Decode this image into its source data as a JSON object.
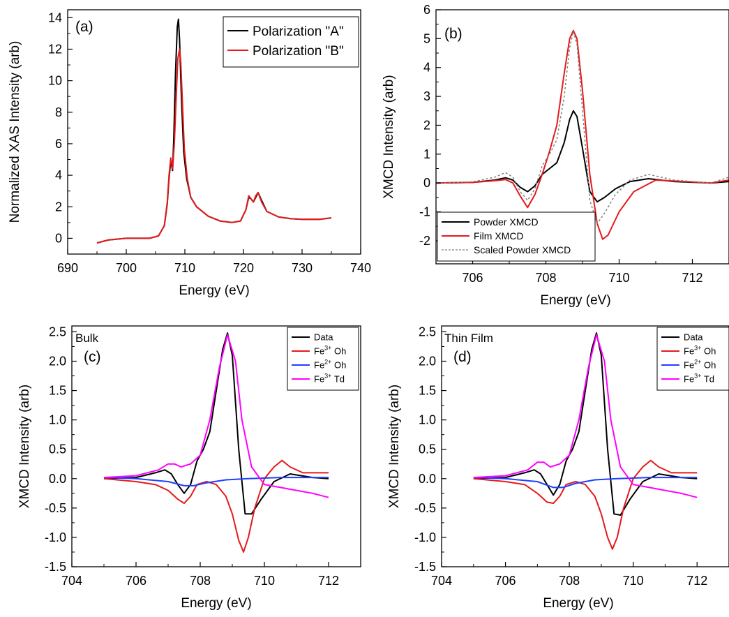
{
  "chart_data": [
    {
      "id": "a",
      "type": "line",
      "panel_label": "(a)",
      "xlabel": "Energy (eV)",
      "ylabel": "Normalized XAS Intensity (arb)",
      "xlim": [
        690,
        740
      ],
      "ylim": [
        -1,
        14.5
      ],
      "xticks": [
        690,
        700,
        710,
        720,
        730,
        740
      ],
      "yticks": [
        0,
        2,
        4,
        6,
        8,
        10,
        12,
        14
      ],
      "legend_position": "top-right",
      "series": [
        {
          "name": "Polarization \"A\"",
          "color": "#000000",
          "x": [
            695,
            696,
            697,
            700,
            704,
            705.5,
            706.5,
            707,
            707.3,
            707.6,
            707.9,
            708.1,
            708.4,
            708.7,
            708.9,
            709.1,
            709.4,
            709.8,
            710.3,
            711,
            712,
            714,
            716,
            718,
            719.5,
            720.4,
            720.9,
            721.3,
            721.7,
            722.1,
            722.5,
            723.1,
            724,
            726,
            728,
            730,
            733,
            735
          ],
          "y": [
            -0.3,
            -0.2,
            -0.1,
            0.0,
            0.0,
            0.15,
            0.8,
            2.2,
            3.8,
            4.9,
            4.3,
            6.2,
            10.5,
            13.4,
            13.9,
            12.6,
            9.0,
            5.5,
            3.8,
            2.6,
            2.0,
            1.4,
            1.1,
            1.0,
            1.1,
            1.8,
            2.6,
            2.5,
            2.3,
            2.6,
            2.9,
            2.4,
            1.7,
            1.35,
            1.25,
            1.2,
            1.2,
            1.3
          ]
        },
        {
          "name": "Polarization \"B\"",
          "color": "#e41a1c",
          "x": [
            695,
            696,
            697,
            700,
            704,
            705.5,
            706.5,
            707,
            707.3,
            707.6,
            707.9,
            708.2,
            708.5,
            708.8,
            709.1,
            709.3,
            709.6,
            709.9,
            710.4,
            711,
            712,
            714,
            716,
            718,
            719.5,
            720.4,
            720.9,
            721.3,
            721.7,
            722.1,
            722.5,
            723.1,
            724,
            726,
            728,
            730,
            733,
            735
          ],
          "y": [
            -0.3,
            -0.2,
            -0.1,
            0.0,
            0.0,
            0.15,
            0.8,
            2.3,
            4.0,
            5.1,
            4.4,
            6.0,
            8.8,
            11.4,
            12.0,
            11.2,
            8.5,
            5.7,
            3.8,
            2.6,
            2.0,
            1.4,
            1.1,
            1.0,
            1.1,
            1.8,
            2.7,
            2.5,
            2.3,
            2.7,
            2.9,
            2.3,
            1.7,
            1.35,
            1.25,
            1.2,
            1.2,
            1.3
          ]
        }
      ]
    },
    {
      "id": "b",
      "type": "line",
      "panel_label": "(b)",
      "xlabel": "Energy (eV)",
      "ylabel": "XMCD Intensity (arb)",
      "xlim": [
        705,
        713
      ],
      "ylim": [
        -2.8,
        6
      ],
      "xticks": [
        706,
        708,
        710,
        712
      ],
      "yticks": [
        -2,
        -1,
        0,
        1,
        2,
        3,
        4,
        5,
        6
      ],
      "legend_position": "bottom-left",
      "series": [
        {
          "name": "Powder XMCD",
          "color": "#000000",
          "dash": "solid",
          "x": [
            705,
            706,
            706.6,
            706.9,
            707.1,
            707.3,
            707.5,
            707.7,
            707.9,
            708.1,
            708.3,
            708.5,
            708.65,
            708.75,
            708.85,
            709.0,
            709.2,
            709.4,
            709.6,
            709.9,
            710.3,
            710.8,
            711.5,
            712.5,
            713
          ],
          "y": [
            0,
            0.02,
            0.1,
            0.18,
            0.1,
            -0.15,
            -0.3,
            -0.1,
            0.3,
            0.5,
            0.7,
            1.4,
            2.2,
            2.5,
            2.3,
            1.2,
            -0.3,
            -0.65,
            -0.5,
            -0.2,
            0.05,
            0.15,
            0.05,
            0.0,
            0.05
          ]
        },
        {
          "name": "Film XMCD",
          "color": "#e41a1c",
          "dash": "solid",
          "x": [
            705,
            706,
            706.6,
            706.9,
            707.1,
            707.3,
            707.5,
            707.7,
            707.9,
            708.1,
            708.3,
            708.5,
            708.65,
            708.75,
            708.85,
            709.0,
            709.2,
            709.4,
            709.55,
            709.7,
            710.0,
            710.4,
            711,
            711.8,
            712.5,
            713
          ],
          "y": [
            0,
            0.02,
            0.08,
            0.12,
            0.0,
            -0.45,
            -0.85,
            -0.4,
            0.3,
            1.1,
            2.0,
            3.8,
            5.0,
            5.28,
            5.0,
            3.2,
            0.3,
            -1.4,
            -1.95,
            -1.8,
            -1.0,
            -0.3,
            0.1,
            0.05,
            0.0,
            0.1
          ]
        },
        {
          "name": "Scaled Powder XMCD",
          "color": "#808080",
          "dash": "dotted",
          "x": [
            705,
            706,
            706.6,
            706.9,
            707.1,
            707.3,
            707.5,
            707.7,
            707.9,
            708.1,
            708.3,
            708.5,
            708.65,
            708.75,
            708.85,
            709.0,
            709.2,
            709.4,
            709.6,
            709.9,
            710.3,
            710.8,
            711.5,
            712.5,
            713
          ],
          "y": [
            0,
            0.04,
            0.2,
            0.36,
            0.2,
            -0.3,
            -0.6,
            -0.2,
            0.6,
            1.0,
            1.5,
            3.0,
            4.7,
            5.25,
            4.8,
            2.5,
            -0.6,
            -1.4,
            -1.05,
            -0.4,
            0.1,
            0.3,
            0.1,
            0.0,
            0.2
          ]
        }
      ]
    },
    {
      "id": "c",
      "type": "line",
      "panel_label": "(c)",
      "corner_text": "Bulk",
      "xlabel": "Energy (eV)",
      "ylabel": "XMCD Intensity (arb)",
      "xlim": [
        704,
        713
      ],
      "ylim": [
        -1.5,
        2.6
      ],
      "xticks": [
        704,
        706,
        708,
        710,
        712
      ],
      "yticks": [
        -1.5,
        -1.0,
        -0.5,
        0.0,
        0.5,
        1.0,
        1.5,
        2.0,
        2.5
      ],
      "legend_position": "top-right",
      "series": [
        {
          "name": "Data",
          "color": "#000000",
          "x": [
            705,
            706,
            706.6,
            706.9,
            707.1,
            707.3,
            707.5,
            707.7,
            707.9,
            708.1,
            708.3,
            708.5,
            708.7,
            708.85,
            709.0,
            709.2,
            709.4,
            709.6,
            709.9,
            710.3,
            710.8,
            711.5,
            712
          ],
          "y": [
            0,
            0.02,
            0.1,
            0.15,
            0.08,
            -0.1,
            -0.25,
            -0.1,
            0.3,
            0.5,
            0.8,
            1.5,
            2.2,
            2.48,
            2.1,
            0.5,
            -0.6,
            -0.6,
            -0.35,
            -0.05,
            0.08,
            0.02,
            0.0
          ]
        },
        {
          "name": "Fe3+ Oh",
          "color": "#e41a1c",
          "sup": "3+",
          "base": "Fe",
          "tail": " Oh",
          "x": [
            705,
            706,
            706.6,
            707.0,
            707.3,
            707.5,
            707.7,
            707.9,
            708.2,
            708.5,
            708.8,
            709.0,
            709.2,
            709.35,
            709.5,
            709.7,
            710.0,
            710.3,
            710.55,
            710.8,
            711.2,
            712
          ],
          "y": [
            0,
            -0.05,
            -0.1,
            -0.2,
            -0.35,
            -0.42,
            -0.3,
            -0.1,
            -0.05,
            -0.1,
            -0.3,
            -0.6,
            -1.05,
            -1.25,
            -1.0,
            -0.5,
            0.0,
            0.2,
            0.31,
            0.2,
            0.1,
            0.1
          ]
        },
        {
          "name": "Fe2+ Oh",
          "color": "#1f3fff",
          "sup": "2+",
          "base": "Fe",
          "tail": " Oh",
          "x": [
            705,
            706,
            707,
            707.5,
            707.8,
            708.2,
            708.8,
            709.5,
            710.5,
            711.5,
            712
          ],
          "y": [
            0.02,
            0.0,
            -0.05,
            -0.12,
            -0.12,
            -0.07,
            -0.02,
            0.0,
            0.02,
            0.02,
            0.02
          ]
        },
        {
          "name": "Fe3+ Td",
          "color": "#ff00ff",
          "sup": "3+",
          "base": "Fe",
          "tail": " Td",
          "x": [
            705,
            706,
            706.7,
            707.0,
            707.2,
            707.4,
            707.7,
            708.0,
            708.3,
            708.6,
            708.85,
            709.1,
            709.3,
            709.6,
            710.0,
            710.5,
            711,
            711.5,
            712
          ],
          "y": [
            0.02,
            0.05,
            0.15,
            0.25,
            0.25,
            0.2,
            0.25,
            0.4,
            1.0,
            1.9,
            2.45,
            2.0,
            1.0,
            0.2,
            -0.1,
            -0.15,
            -0.2,
            -0.25,
            -0.32
          ]
        }
      ]
    },
    {
      "id": "d",
      "type": "line",
      "panel_label": "(d)",
      "corner_text": "Thin Film",
      "xlabel": "Energy (eV)",
      "ylabel": "XMCD Intensity (arb)",
      "xlim": [
        704,
        713
      ],
      "ylim": [
        -1.5,
        2.6
      ],
      "xticks": [
        704,
        706,
        708,
        710,
        712
      ],
      "yticks": [
        -1.5,
        -1.0,
        -0.5,
        0.0,
        0.5,
        1.0,
        1.5,
        2.0,
        2.5
      ],
      "legend_position": "top-right",
      "series": [
        {
          "name": "Data",
          "color": "#000000",
          "x": [
            705,
            706,
            706.6,
            706.9,
            707.1,
            707.3,
            707.5,
            707.7,
            707.9,
            708.1,
            708.3,
            708.5,
            708.7,
            708.85,
            709.0,
            709.2,
            709.4,
            709.6,
            709.9,
            710.3,
            710.8,
            711.5,
            712
          ],
          "y": [
            0,
            0.02,
            0.1,
            0.15,
            0.08,
            -0.1,
            -0.28,
            -0.1,
            0.3,
            0.5,
            0.8,
            1.5,
            2.2,
            2.48,
            2.1,
            0.5,
            -0.6,
            -0.62,
            -0.35,
            -0.05,
            0.08,
            0.02,
            0.0
          ]
        },
        {
          "name": "Fe3+ Oh",
          "color": "#e41a1c",
          "sup": "3+",
          "base": "Fe",
          "tail": " Oh",
          "x": [
            705,
            706,
            706.6,
            707.0,
            707.3,
            707.5,
            707.7,
            707.9,
            708.2,
            708.5,
            708.8,
            709.0,
            709.2,
            709.35,
            709.5,
            709.7,
            710.0,
            710.3,
            710.55,
            710.8,
            711.2,
            712
          ],
          "y": [
            0,
            -0.05,
            -0.1,
            -0.25,
            -0.4,
            -0.42,
            -0.3,
            -0.1,
            -0.05,
            -0.1,
            -0.3,
            -0.6,
            -1.0,
            -1.2,
            -1.0,
            -0.5,
            0.0,
            0.2,
            0.31,
            0.2,
            0.1,
            0.1
          ]
        },
        {
          "name": "Fe2+ Oh",
          "color": "#1f3fff",
          "sup": "2+",
          "base": "Fe",
          "tail": " Oh",
          "x": [
            705,
            706,
            707,
            707.5,
            707.8,
            708.2,
            708.8,
            709.5,
            710.5,
            711.5,
            712
          ],
          "y": [
            0.02,
            0.0,
            -0.05,
            -0.15,
            -0.15,
            -0.08,
            -0.02,
            0.0,
            0.02,
            0.02,
            0.02
          ]
        },
        {
          "name": "Fe3+ Td",
          "color": "#ff00ff",
          "sup": "3+",
          "base": "Fe",
          "tail": " Td",
          "x": [
            705,
            706,
            706.7,
            707.0,
            707.2,
            707.4,
            707.7,
            708.0,
            708.3,
            708.6,
            708.85,
            709.1,
            709.3,
            709.6,
            710.0,
            710.5,
            711,
            711.5,
            712
          ],
          "y": [
            0.02,
            0.05,
            0.15,
            0.28,
            0.28,
            0.2,
            0.25,
            0.4,
            1.0,
            1.9,
            2.45,
            2.0,
            1.0,
            0.2,
            -0.1,
            -0.15,
            -0.2,
            -0.25,
            -0.32
          ]
        }
      ]
    }
  ]
}
